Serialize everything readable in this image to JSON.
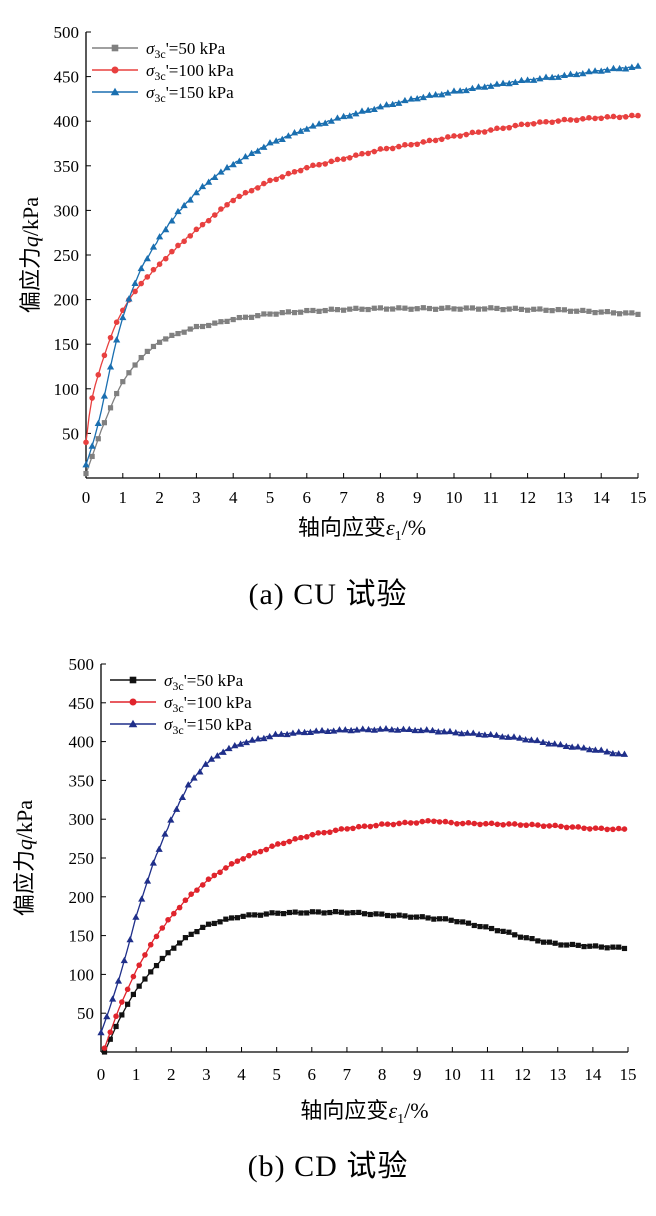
{
  "chart_data": [
    {
      "type": "line",
      "caption": "(a) CU 试验",
      "xlabel": "轴向应变ε1/%",
      "ylabel": "偏应力q/kPa",
      "xlim": [
        0,
        15
      ],
      "ylim": [
        0,
        500
      ],
      "xticks": [
        0,
        1,
        2,
        3,
        4,
        5,
        6,
        7,
        8,
        9,
        10,
        11,
        12,
        13,
        14,
        15
      ],
      "yticks": [
        50,
        100,
        150,
        200,
        250,
        300,
        350,
        400,
        450,
        500
      ],
      "legend_position": "top-left",
      "series": [
        {
          "name": "σ3c'=50 kPa",
          "color": "#808080",
          "marker": "square",
          "points": [
            [
              0,
              5
            ],
            [
              0.2,
              28
            ],
            [
              0.4,
              52
            ],
            [
              0.6,
              72
            ],
            [
              0.8,
              92
            ],
            [
              1,
              108
            ],
            [
              1.2,
              120
            ],
            [
              1.5,
              135
            ],
            [
              1.8,
              146
            ],
            [
              2,
              153
            ],
            [
              2.5,
              162
            ],
            [
              3,
              169
            ],
            [
              3.5,
              173
            ],
            [
              4,
              178
            ],
            [
              5,
              184
            ],
            [
              6,
              187
            ],
            [
              7,
              189
            ],
            [
              8,
              190
            ],
            [
              9,
              190
            ],
            [
              10,
              190
            ],
            [
              11,
              190
            ],
            [
              12,
              189
            ],
            [
              13,
              188
            ],
            [
              14,
              186
            ],
            [
              15,
              184
            ]
          ]
        },
        {
          "name": "σ3c'=100 kPa",
          "color": "#e8403f",
          "marker": "circle",
          "points": [
            [
              0,
              40
            ],
            [
              0.1,
              75
            ],
            [
              0.2,
              97
            ],
            [
              0.4,
              125
            ],
            [
              0.6,
              150
            ],
            [
              0.8,
              172
            ],
            [
              1,
              188
            ],
            [
              1.2,
              202
            ],
            [
              1.5,
              218
            ],
            [
              2,
              240
            ],
            [
              2.5,
              260
            ],
            [
              3,
              278
            ],
            [
              3.5,
              295
            ],
            [
              4,
              312
            ],
            [
              5,
              333
            ],
            [
              6,
              348
            ],
            [
              7,
              358
            ],
            [
              8,
              368
            ],
            [
              9,
              375
            ],
            [
              10,
              383
            ],
            [
              11,
              390
            ],
            [
              12,
              397
            ],
            [
              13,
              401
            ],
            [
              14,
              404
            ],
            [
              15,
              406
            ]
          ]
        },
        {
          "name": "σ3c'=150 kPa",
          "color": "#1a6fb0",
          "marker": "triangle",
          "points": [
            [
              0,
              15
            ],
            [
              0.2,
              40
            ],
            [
              0.4,
              72
            ],
            [
              0.6,
              112
            ],
            [
              0.8,
              150
            ],
            [
              1,
              180
            ],
            [
              1.2,
              205
            ],
            [
              1.5,
              235
            ],
            [
              2,
              270
            ],
            [
              2.5,
              298
            ],
            [
              3,
              320
            ],
            [
              3.5,
              338
            ],
            [
              4,
              352
            ],
            [
              5,
              375
            ],
            [
              6,
              392
            ],
            [
              7,
              405
            ],
            [
              8,
              416
            ],
            [
              9,
              426
            ],
            [
              10,
              433
            ],
            [
              11,
              440
            ],
            [
              12,
              446
            ],
            [
              13,
              451
            ],
            [
              14,
              457
            ],
            [
              15,
              461
            ]
          ]
        }
      ]
    },
    {
      "type": "line",
      "caption": "(b) CD 试验",
      "xlabel": "轴向应变ε1/%",
      "ylabel": "偏应力q/kPa",
      "xlim": [
        0,
        15
      ],
      "ylim": [
        0,
        500
      ],
      "xticks": [
        0,
        1,
        2,
        3,
        4,
        5,
        6,
        7,
        8,
        9,
        10,
        11,
        12,
        13,
        14,
        15
      ],
      "yticks": [
        50,
        100,
        150,
        200,
        250,
        300,
        350,
        400,
        450,
        500
      ],
      "legend_position": "top-left",
      "series": [
        {
          "name": "σ3c'=50 kPa",
          "color": "#111111",
          "marker": "square",
          "points": [
            [
              0.1,
              0
            ],
            [
              0.3,
              20
            ],
            [
              0.5,
              40
            ],
            [
              0.8,
              65
            ],
            [
              1,
              80
            ],
            [
              1.5,
              108
            ],
            [
              2,
              132
            ],
            [
              2.5,
              150
            ],
            [
              3,
              163
            ],
            [
              3.5,
              170
            ],
            [
              4,
              175
            ],
            [
              5,
              179
            ],
            [
              6,
              180
            ],
            [
              7,
              180
            ],
            [
              8,
              177
            ],
            [
              9,
              174
            ],
            [
              10,
              170
            ],
            [
              10.5,
              165
            ],
            [
              11,
              160
            ],
            [
              11.5,
              155
            ],
            [
              12,
              148
            ],
            [
              12.5,
              143
            ],
            [
              13,
              139
            ],
            [
              14,
              136
            ],
            [
              14.9,
              134
            ]
          ]
        },
        {
          "name": "σ3c'=100 kPa",
          "color": "#e0242c",
          "marker": "circle",
          "points": [
            [
              0.1,
              5
            ],
            [
              0.3,
              30
            ],
            [
              0.5,
              55
            ],
            [
              0.8,
              85
            ],
            [
              1,
              105
            ],
            [
              1.5,
              145
            ],
            [
              2,
              175
            ],
            [
              2.5,
              200
            ],
            [
              3,
              220
            ],
            [
              3.5,
              236
            ],
            [
              4,
              249
            ],
            [
              5,
              267
            ],
            [
              6,
              280
            ],
            [
              7,
              288
            ],
            [
              8,
              293
            ],
            [
              9,
              296
            ],
            [
              9.5,
              298
            ],
            [
              10,
              295
            ],
            [
              11,
              294
            ],
            [
              12,
              293
            ],
            [
              13,
              291
            ],
            [
              14,
              288
            ],
            [
              14.9,
              287
            ]
          ]
        },
        {
          "name": "σ3c'=150 kPa",
          "color": "#1f2f8a",
          "marker": "triangle",
          "points": [
            [
              0,
              25
            ],
            [
              0.2,
              50
            ],
            [
              0.5,
              92
            ],
            [
              0.8,
              140
            ],
            [
              1,
              175
            ],
            [
              1.5,
              245
            ],
            [
              2,
              300
            ],
            [
              2.5,
              345
            ],
            [
              3,
              372
            ],
            [
              3.5,
              388
            ],
            [
              4,
              398
            ],
            [
              5,
              409
            ],
            [
              6,
              413
            ],
            [
              7,
              415
            ],
            [
              8,
              416
            ],
            [
              9,
              415
            ],
            [
              9.5,
              414
            ],
            [
              10,
              412
            ],
            [
              11,
              409
            ],
            [
              12,
              404
            ],
            [
              13,
              396
            ],
            [
              14,
              390
            ],
            [
              14.9,
              383
            ]
          ]
        }
      ]
    }
  ]
}
